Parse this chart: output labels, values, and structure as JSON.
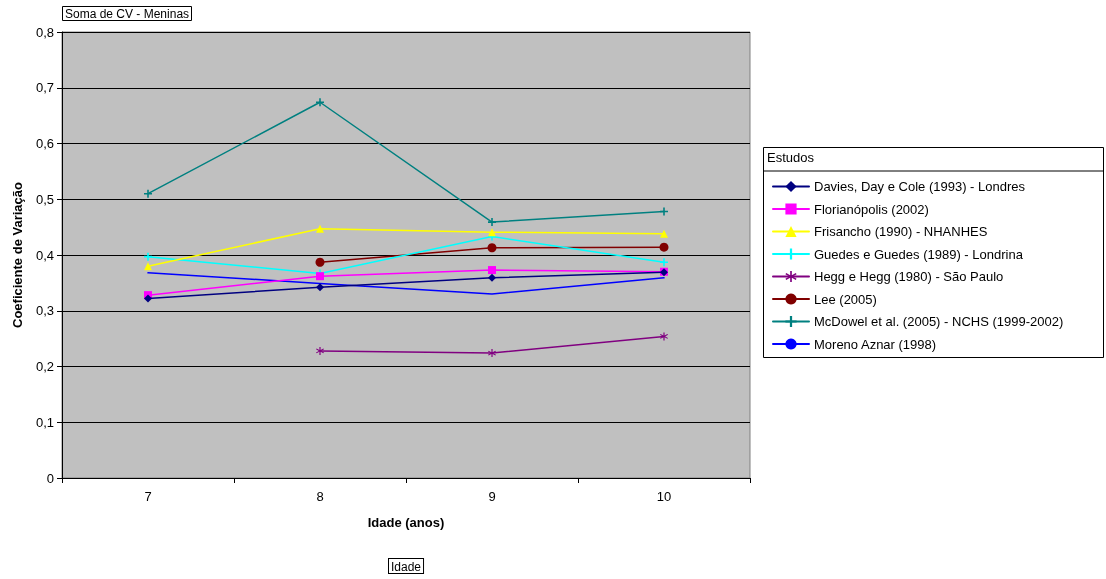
{
  "chart_data": {
    "type": "line",
    "title": "Soma de CV - Meninas",
    "xlabel": "Idade (anos)",
    "ylabel": "Coeficiente de Variação",
    "legend_title": "Estudos",
    "annotations": [
      "Idade"
    ],
    "categories": [
      "7",
      "8",
      "9",
      "10"
    ],
    "series": [
      {
        "name": "Davies, Day e Cole (1993) - Londres",
        "color": "#000080",
        "marker": "diamond",
        "values": [
          0.322,
          0.342,
          0.359,
          0.369
        ]
      },
      {
        "name": "Florianópolis (2002)",
        "color": "#ff00ff",
        "marker": "square",
        "values": [
          0.328,
          0.362,
          0.373,
          0.37
        ]
      },
      {
        "name": "Frisancho (1990) - NHANHES",
        "color": "#ffff00",
        "marker": "triangle",
        "values": [
          0.38,
          0.447,
          0.441,
          0.438
        ]
      },
      {
        "name": "Guedes e Guedes (1989) - Londrina",
        "color": "#00ffff",
        "marker": "cross",
        "values": [
          0.397,
          0.367,
          0.433,
          0.387
        ]
      },
      {
        "name": "Hegg e Hegg (1980) - São Paulo",
        "color": "#800080",
        "marker": "star",
        "values": [
          null,
          0.228,
          0.224,
          0.254
        ]
      },
      {
        "name": "Lee (2005)",
        "color": "#800000",
        "marker": "circle",
        "values": [
          null,
          0.387,
          0.413,
          0.414
        ]
      },
      {
        "name": "McDowel et al. (2005) - NCHS (1999-2002)",
        "color": "#008080",
        "marker": "cross",
        "values": [
          0.51,
          0.674,
          0.459,
          0.478
        ]
      },
      {
        "name": "Moreno Aznar (1998)",
        "color": "#0000ff",
        "marker": "none",
        "values": [
          0.368,
          0.349,
          0.33,
          0.359
        ]
      }
    ],
    "ylim": [
      0,
      0.8
    ],
    "yticks": [
      0,
      {
        "value": 0.1,
        "label": "0,1"
      },
      {
        "value": 0.2,
        "label": "0,2"
      },
      {
        "value": 0.3,
        "label": "0,3"
      },
      {
        "value": 0.4,
        "label": "0,4"
      },
      {
        "value": 0.5,
        "label": "0,5"
      },
      {
        "value": 0.6,
        "label": "0,6"
      },
      {
        "value": 0.7,
        "label": "0,7"
      },
      {
        "value": 0.8,
        "label": "0,8"
      }
    ],
    "grid": "y",
    "legend": "right",
    "line_style": "solid"
  }
}
